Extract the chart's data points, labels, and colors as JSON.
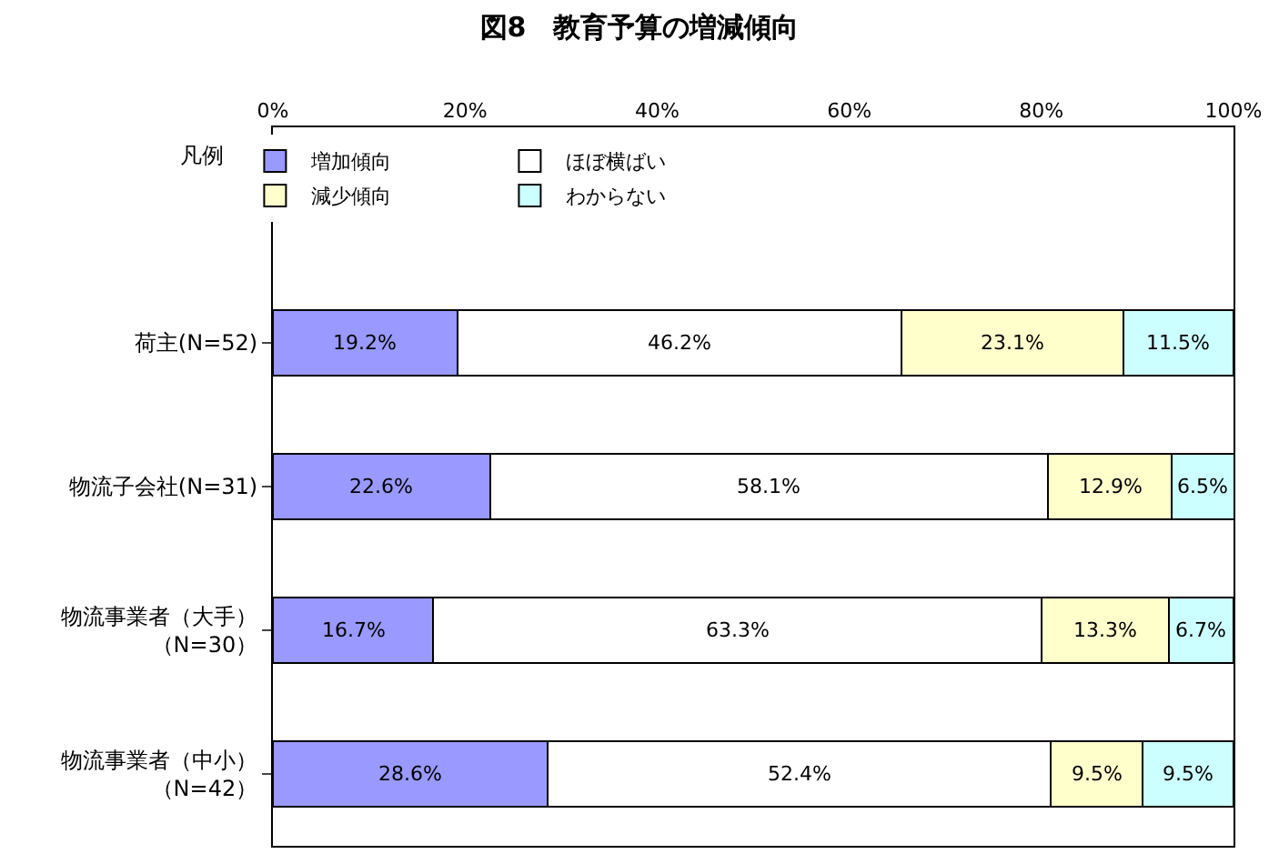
{
  "chart_data": {
    "type": "bar",
    "orientation": "horizontal",
    "stacked": true,
    "title": "図8　教育予算の増減傾向",
    "legend_title": "凡例",
    "legend": "top",
    "categories": [
      null,
      "荷主(N=52)",
      "物流子会社(N=31)",
      "物流事業者（大手）（N=30）",
      "物流事業者（中小）（N=42）"
    ],
    "series": [
      {
        "name": "増加傾向",
        "color": "#9999ff",
        "values": [
          null,
          19.2,
          22.6,
          16.7,
          28.6
        ],
        "value_labels": [
          null,
          "19.2%",
          "22.6%",
          "16.7%",
          "28.6%"
        ]
      },
      {
        "name": "ほぼ横ばい",
        "color": "#ffffff",
        "values": [
          null,
          46.2,
          58.1,
          63.3,
          52.4
        ],
        "value_labels": [
          null,
          "46.2%",
          "58.1%",
          "63.3%",
          "52.4%"
        ]
      },
      {
        "name": "減少傾向",
        "color": "#ffffcc",
        "values": [
          null,
          23.1,
          12.9,
          13.3,
          9.5
        ],
        "value_labels": [
          null,
          "23.1%",
          "12.9%",
          "13.3%",
          "9.5%"
        ]
      },
      {
        "name": "わからない",
        "color": "#ccffff",
        "values": [
          null,
          11.5,
          6.5,
          6.7,
          9.5
        ],
        "value_labels": [
          null,
          "11.5%",
          "6.5%",
          "6.7%",
          "9.5%"
        ]
      }
    ],
    "xlim": [
      0,
      100
    ],
    "xticks": [
      {
        "value": 0,
        "label": "0%"
      },
      {
        "value": 20,
        "label": "20%"
      },
      {
        "value": 40,
        "label": "40%"
      },
      {
        "value": 60,
        "label": "60%"
      },
      {
        "value": 80,
        "label": "80%"
      },
      {
        "value": 100,
        "label": "100%"
      }
    ]
  }
}
